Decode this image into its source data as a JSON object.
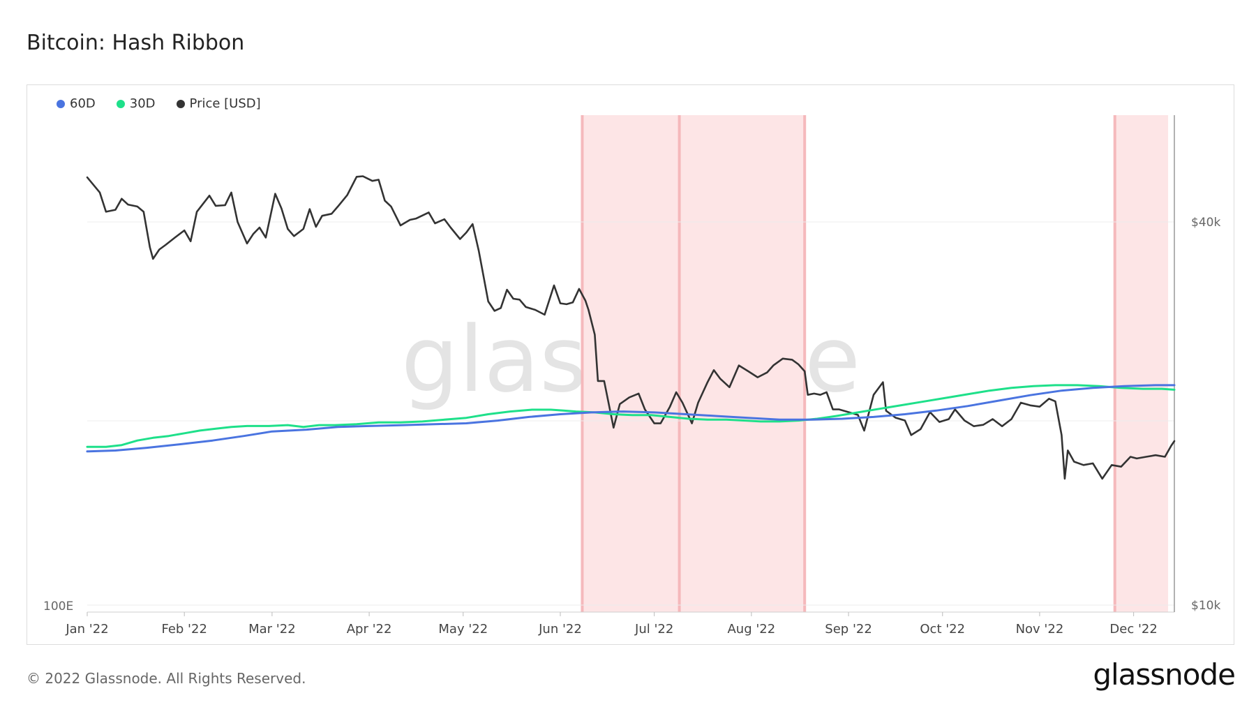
{
  "title": "Bitcoin: Hash Ribbon",
  "footer": "© 2022 Glassnode. All Rights Reserved.",
  "brand": "glassnode",
  "watermark": "glassnode",
  "legend": [
    {
      "name": "60D",
      "color": "#4a74e0"
    },
    {
      "name": "30D",
      "color": "#1ee08a"
    },
    {
      "name": "Price [USD]",
      "color": "#333333"
    }
  ],
  "chart_data": {
    "type": "line",
    "title": "Bitcoin: Hash Ribbon",
    "x_ticks": [
      "Jan '22",
      "Feb '22",
      "Mar '22",
      "Apr '22",
      "May '22",
      "Jun '22",
      "Jul '22",
      "Aug '22",
      "Sep '22",
      "Oct '22",
      "Nov '22",
      "Dec '22"
    ],
    "x_range": [
      "2022-01-01",
      "2022-12-14"
    ],
    "left_axis": {
      "ticks": [
        "100E"
      ]
    },
    "right_axis": {
      "scale": "log",
      "ticks": [
        "$40k",
        "$10k"
      ],
      "tick_values": [
        40000,
        10000
      ]
    },
    "grid": true,
    "capitulation_bands": [
      {
        "start": "2022-06-08",
        "end": "2022-08-18"
      },
      {
        "start": "2022-11-25",
        "end": "2022-12-12"
      }
    ],
    "capitulation_color": "#fde5e6",
    "series": [
      {
        "name": "Price [USD]",
        "color": "#333333",
        "axis": "right",
        "points": [
          [
            "2022-01-01",
            47000
          ],
          [
            "2022-01-05",
            44500
          ],
          [
            "2022-01-07",
            41500
          ],
          [
            "2022-01-10",
            41800
          ],
          [
            "2022-01-12",
            43500
          ],
          [
            "2022-01-14",
            42600
          ],
          [
            "2022-01-17",
            42300
          ],
          [
            "2022-01-19",
            41500
          ],
          [
            "2022-01-21",
            36500
          ],
          [
            "2022-01-22",
            35000
          ],
          [
            "2022-01-24",
            36200
          ],
          [
            "2022-01-26",
            36800
          ],
          [
            "2022-01-29",
            37800
          ],
          [
            "2022-02-01",
            38800
          ],
          [
            "2022-02-03",
            37300
          ],
          [
            "2022-02-05",
            41500
          ],
          [
            "2022-02-09",
            44000
          ],
          [
            "2022-02-11",
            42400
          ],
          [
            "2022-02-14",
            42500
          ],
          [
            "2022-02-16",
            44500
          ],
          [
            "2022-02-18",
            40000
          ],
          [
            "2022-02-21",
            37000
          ],
          [
            "2022-02-23",
            38300
          ],
          [
            "2022-02-25",
            39200
          ],
          [
            "2022-02-27",
            37800
          ],
          [
            "2022-03-02",
            44300
          ],
          [
            "2022-03-04",
            42000
          ],
          [
            "2022-03-06",
            39000
          ],
          [
            "2022-03-08",
            38000
          ],
          [
            "2022-03-11",
            39000
          ],
          [
            "2022-03-13",
            41900
          ],
          [
            "2022-03-15",
            39300
          ],
          [
            "2022-03-17",
            40900
          ],
          [
            "2022-03-20",
            41200
          ],
          [
            "2022-03-22",
            42300
          ],
          [
            "2022-03-25",
            44100
          ],
          [
            "2022-03-28",
            47100
          ],
          [
            "2022-03-30",
            47200
          ],
          [
            "2022-04-02",
            46400
          ],
          [
            "2022-04-04",
            46600
          ],
          [
            "2022-04-06",
            43200
          ],
          [
            "2022-04-08",
            42300
          ],
          [
            "2022-04-11",
            39500
          ],
          [
            "2022-04-14",
            40300
          ],
          [
            "2022-04-16",
            40500
          ],
          [
            "2022-04-20",
            41400
          ],
          [
            "2022-04-22",
            39800
          ],
          [
            "2022-04-25",
            40400
          ],
          [
            "2022-04-27",
            39200
          ],
          [
            "2022-04-30",
            37600
          ],
          [
            "2022-05-02",
            38500
          ],
          [
            "2022-05-04",
            39700
          ],
          [
            "2022-05-06",
            36000
          ],
          [
            "2022-05-09",
            30000
          ],
          [
            "2022-05-11",
            29000
          ],
          [
            "2022-05-13",
            29300
          ],
          [
            "2022-05-15",
            31300
          ],
          [
            "2022-05-17",
            30300
          ],
          [
            "2022-05-19",
            30200
          ],
          [
            "2022-05-21",
            29400
          ],
          [
            "2022-05-24",
            29100
          ],
          [
            "2022-05-27",
            28600
          ],
          [
            "2022-05-30",
            31800
          ],
          [
            "2022-06-01",
            29800
          ],
          [
            "2022-06-03",
            29700
          ],
          [
            "2022-06-05",
            29900
          ],
          [
            "2022-06-07",
            31400
          ],
          [
            "2022-06-09",
            30100
          ],
          [
            "2022-06-10",
            29100
          ],
          [
            "2022-06-12",
            26600
          ],
          [
            "2022-06-13",
            22500
          ],
          [
            "2022-06-15",
            22500
          ],
          [
            "2022-06-18",
            19000
          ],
          [
            "2022-06-20",
            20700
          ],
          [
            "2022-06-23",
            21200
          ],
          [
            "2022-06-26",
            21500
          ],
          [
            "2022-06-28",
            20300
          ],
          [
            "2022-07-01",
            19300
          ],
          [
            "2022-07-03",
            19300
          ],
          [
            "2022-07-06",
            20500
          ],
          [
            "2022-07-08",
            21600
          ],
          [
            "2022-07-10",
            20800
          ],
          [
            "2022-07-13",
            19300
          ],
          [
            "2022-07-15",
            20800
          ],
          [
            "2022-07-18",
            22400
          ],
          [
            "2022-07-20",
            23400
          ],
          [
            "2022-07-22",
            22700
          ],
          [
            "2022-07-25",
            22000
          ],
          [
            "2022-07-28",
            23800
          ],
          [
            "2022-07-31",
            23300
          ],
          [
            "2022-08-03",
            22800
          ],
          [
            "2022-08-06",
            23200
          ],
          [
            "2022-08-08",
            23800
          ],
          [
            "2022-08-11",
            24400
          ],
          [
            "2022-08-14",
            24300
          ],
          [
            "2022-08-16",
            23900
          ],
          [
            "2022-08-18",
            23300
          ],
          [
            "2022-08-19",
            21400
          ],
          [
            "2022-08-21",
            21500
          ],
          [
            "2022-08-23",
            21400
          ],
          [
            "2022-08-25",
            21600
          ],
          [
            "2022-08-27",
            20300
          ],
          [
            "2022-08-29",
            20300
          ],
          [
            "2022-09-01",
            20100
          ],
          [
            "2022-09-04",
            19900
          ],
          [
            "2022-09-06",
            18800
          ],
          [
            "2022-09-09",
            21400
          ],
          [
            "2022-09-12",
            22400
          ],
          [
            "2022-09-13",
            20200
          ],
          [
            "2022-09-16",
            19700
          ],
          [
            "2022-09-19",
            19500
          ],
          [
            "2022-09-21",
            18500
          ],
          [
            "2022-09-24",
            18900
          ],
          [
            "2022-09-27",
            20100
          ],
          [
            "2022-09-30",
            19400
          ],
          [
            "2022-10-03",
            19600
          ],
          [
            "2022-10-05",
            20300
          ],
          [
            "2022-10-08",
            19500
          ],
          [
            "2022-10-11",
            19100
          ],
          [
            "2022-10-14",
            19200
          ],
          [
            "2022-10-17",
            19600
          ],
          [
            "2022-10-20",
            19100
          ],
          [
            "2022-10-23",
            19600
          ],
          [
            "2022-10-26",
            20800
          ],
          [
            "2022-10-29",
            20600
          ],
          [
            "2022-11-01",
            20500
          ],
          [
            "2022-11-04",
            21100
          ],
          [
            "2022-11-06",
            20900
          ],
          [
            "2022-11-08",
            18500
          ],
          [
            "2022-11-09",
            15800
          ],
          [
            "2022-11-10",
            17500
          ],
          [
            "2022-11-12",
            16800
          ],
          [
            "2022-11-15",
            16600
          ],
          [
            "2022-11-18",
            16700
          ],
          [
            "2022-11-21",
            15800
          ],
          [
            "2022-11-24",
            16600
          ],
          [
            "2022-11-27",
            16500
          ],
          [
            "2022-11-30",
            17100
          ],
          [
            "2022-12-02",
            17000
          ],
          [
            "2022-12-05",
            17100
          ],
          [
            "2022-12-08",
            17200
          ],
          [
            "2022-12-11",
            17100
          ],
          [
            "2022-12-13",
            17800
          ],
          [
            "2022-12-14",
            18100
          ]
        ]
      },
      {
        "name": "30D",
        "color": "#1ee08a",
        "axis": "left",
        "points": [
          [
            "2022-01-01",
            181
          ],
          [
            "2022-01-07",
            181
          ],
          [
            "2022-01-12",
            183
          ],
          [
            "2022-01-17",
            188
          ],
          [
            "2022-01-22",
            191
          ],
          [
            "2022-01-27",
            193
          ],
          [
            "2022-02-01",
            196
          ],
          [
            "2022-02-06",
            199
          ],
          [
            "2022-02-11",
            201
          ],
          [
            "2022-02-16",
            203
          ],
          [
            "2022-02-21",
            204
          ],
          [
            "2022-02-28",
            204
          ],
          [
            "2022-03-06",
            205
          ],
          [
            "2022-03-11",
            203
          ],
          [
            "2022-03-16",
            205
          ],
          [
            "2022-03-21",
            205
          ],
          [
            "2022-03-28",
            206
          ],
          [
            "2022-04-04",
            208
          ],
          [
            "2022-04-11",
            208
          ],
          [
            "2022-04-18",
            209
          ],
          [
            "2022-04-25",
            211
          ],
          [
            "2022-05-02",
            213
          ],
          [
            "2022-05-09",
            217
          ],
          [
            "2022-05-16",
            220
          ],
          [
            "2022-05-23",
            222
          ],
          [
            "2022-05-29",
            222
          ],
          [
            "2022-06-02",
            221
          ],
          [
            "2022-06-06",
            220
          ],
          [
            "2022-06-12",
            219
          ],
          [
            "2022-06-18",
            217
          ],
          [
            "2022-06-24",
            216
          ],
          [
            "2022-06-30",
            216
          ],
          [
            "2022-07-06",
            214
          ],
          [
            "2022-07-12",
            212
          ],
          [
            "2022-07-18",
            211
          ],
          [
            "2022-07-24",
            211
          ],
          [
            "2022-07-30",
            210
          ],
          [
            "2022-08-04",
            209
          ],
          [
            "2022-08-10",
            209
          ],
          [
            "2022-08-16",
            210
          ],
          [
            "2022-08-22",
            212
          ],
          [
            "2022-08-28",
            215
          ],
          [
            "2022-09-04",
            219
          ],
          [
            "2022-09-11",
            223
          ],
          [
            "2022-09-18",
            227
          ],
          [
            "2022-09-25",
            231
          ],
          [
            "2022-10-02",
            235
          ],
          [
            "2022-10-09",
            239
          ],
          [
            "2022-10-16",
            243
          ],
          [
            "2022-10-23",
            246
          ],
          [
            "2022-10-30",
            248
          ],
          [
            "2022-11-06",
            249
          ],
          [
            "2022-11-13",
            249
          ],
          [
            "2022-11-20",
            248
          ],
          [
            "2022-11-27",
            246
          ],
          [
            "2022-12-04",
            245
          ],
          [
            "2022-12-10",
            245
          ],
          [
            "2022-12-14",
            244
          ]
        ]
      },
      {
        "name": "60D",
        "color": "#4a74e0",
        "axis": "left",
        "points": [
          [
            "2022-01-01",
            176
          ],
          [
            "2022-01-10",
            177
          ],
          [
            "2022-01-20",
            180
          ],
          [
            "2022-01-31",
            184
          ],
          [
            "2022-02-10",
            188
          ],
          [
            "2022-02-20",
            193
          ],
          [
            "2022-03-01",
            198
          ],
          [
            "2022-03-12",
            200
          ],
          [
            "2022-03-22",
            203
          ],
          [
            "2022-04-01",
            204
          ],
          [
            "2022-04-12",
            205
          ],
          [
            "2022-04-22",
            206
          ],
          [
            "2022-05-02",
            207
          ],
          [
            "2022-05-12",
            210
          ],
          [
            "2022-05-22",
            214
          ],
          [
            "2022-06-01",
            217
          ],
          [
            "2022-06-11",
            219
          ],
          [
            "2022-06-21",
            220
          ],
          [
            "2022-07-01",
            219
          ],
          [
            "2022-07-11",
            217
          ],
          [
            "2022-07-21",
            215
          ],
          [
            "2022-07-31",
            213
          ],
          [
            "2022-08-10",
            211
          ],
          [
            "2022-08-20",
            211
          ],
          [
            "2022-08-30",
            212
          ],
          [
            "2022-09-09",
            214
          ],
          [
            "2022-09-19",
            217
          ],
          [
            "2022-09-29",
            221
          ],
          [
            "2022-10-09",
            226
          ],
          [
            "2022-10-19",
            232
          ],
          [
            "2022-10-29",
            238
          ],
          [
            "2022-11-08",
            243
          ],
          [
            "2022-11-18",
            246
          ],
          [
            "2022-11-28",
            248
          ],
          [
            "2022-12-08",
            249
          ],
          [
            "2022-12-14",
            249
          ]
        ]
      }
    ]
  }
}
